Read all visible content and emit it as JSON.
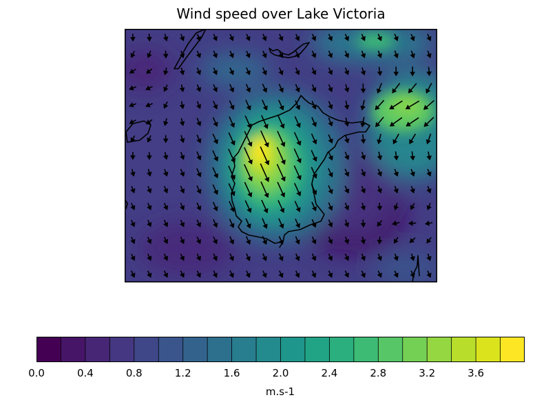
{
  "title": "Wind speed over Lake Victoria",
  "colorbar": {
    "unit": "m.s-1",
    "levels": [
      0.0,
      0.2,
      0.4,
      0.6,
      0.8,
      1.0,
      1.2,
      1.4,
      1.6,
      1.8,
      2.0,
      2.2,
      2.4,
      2.6,
      2.8,
      3.0,
      3.2,
      3.4,
      3.6,
      3.8
    ],
    "tick_labels": [
      "0.0",
      "0.4",
      "0.8",
      "1.2",
      "1.6",
      "2.0",
      "2.4",
      "2.8",
      "3.2",
      "3.6"
    ],
    "colormap": "viridis"
  },
  "chart_data": {
    "type": "heatmap",
    "title": "Wind speed over Lake Victoria",
    "colorbar_label": "m.s-1",
    "value_range": [
      0.0,
      3.8
    ],
    "grid_description": "Filled contour of wind speed with overlaid wind-direction arrows",
    "hotspots": [
      {
        "name": "lake center-west",
        "approx_speed": 3.8
      },
      {
        "name": "northeast plume",
        "approx_speed": 2.6
      },
      {
        "name": "north edge",
        "approx_speed": 2.2
      }
    ],
    "background_speed": 0.6
  }
}
